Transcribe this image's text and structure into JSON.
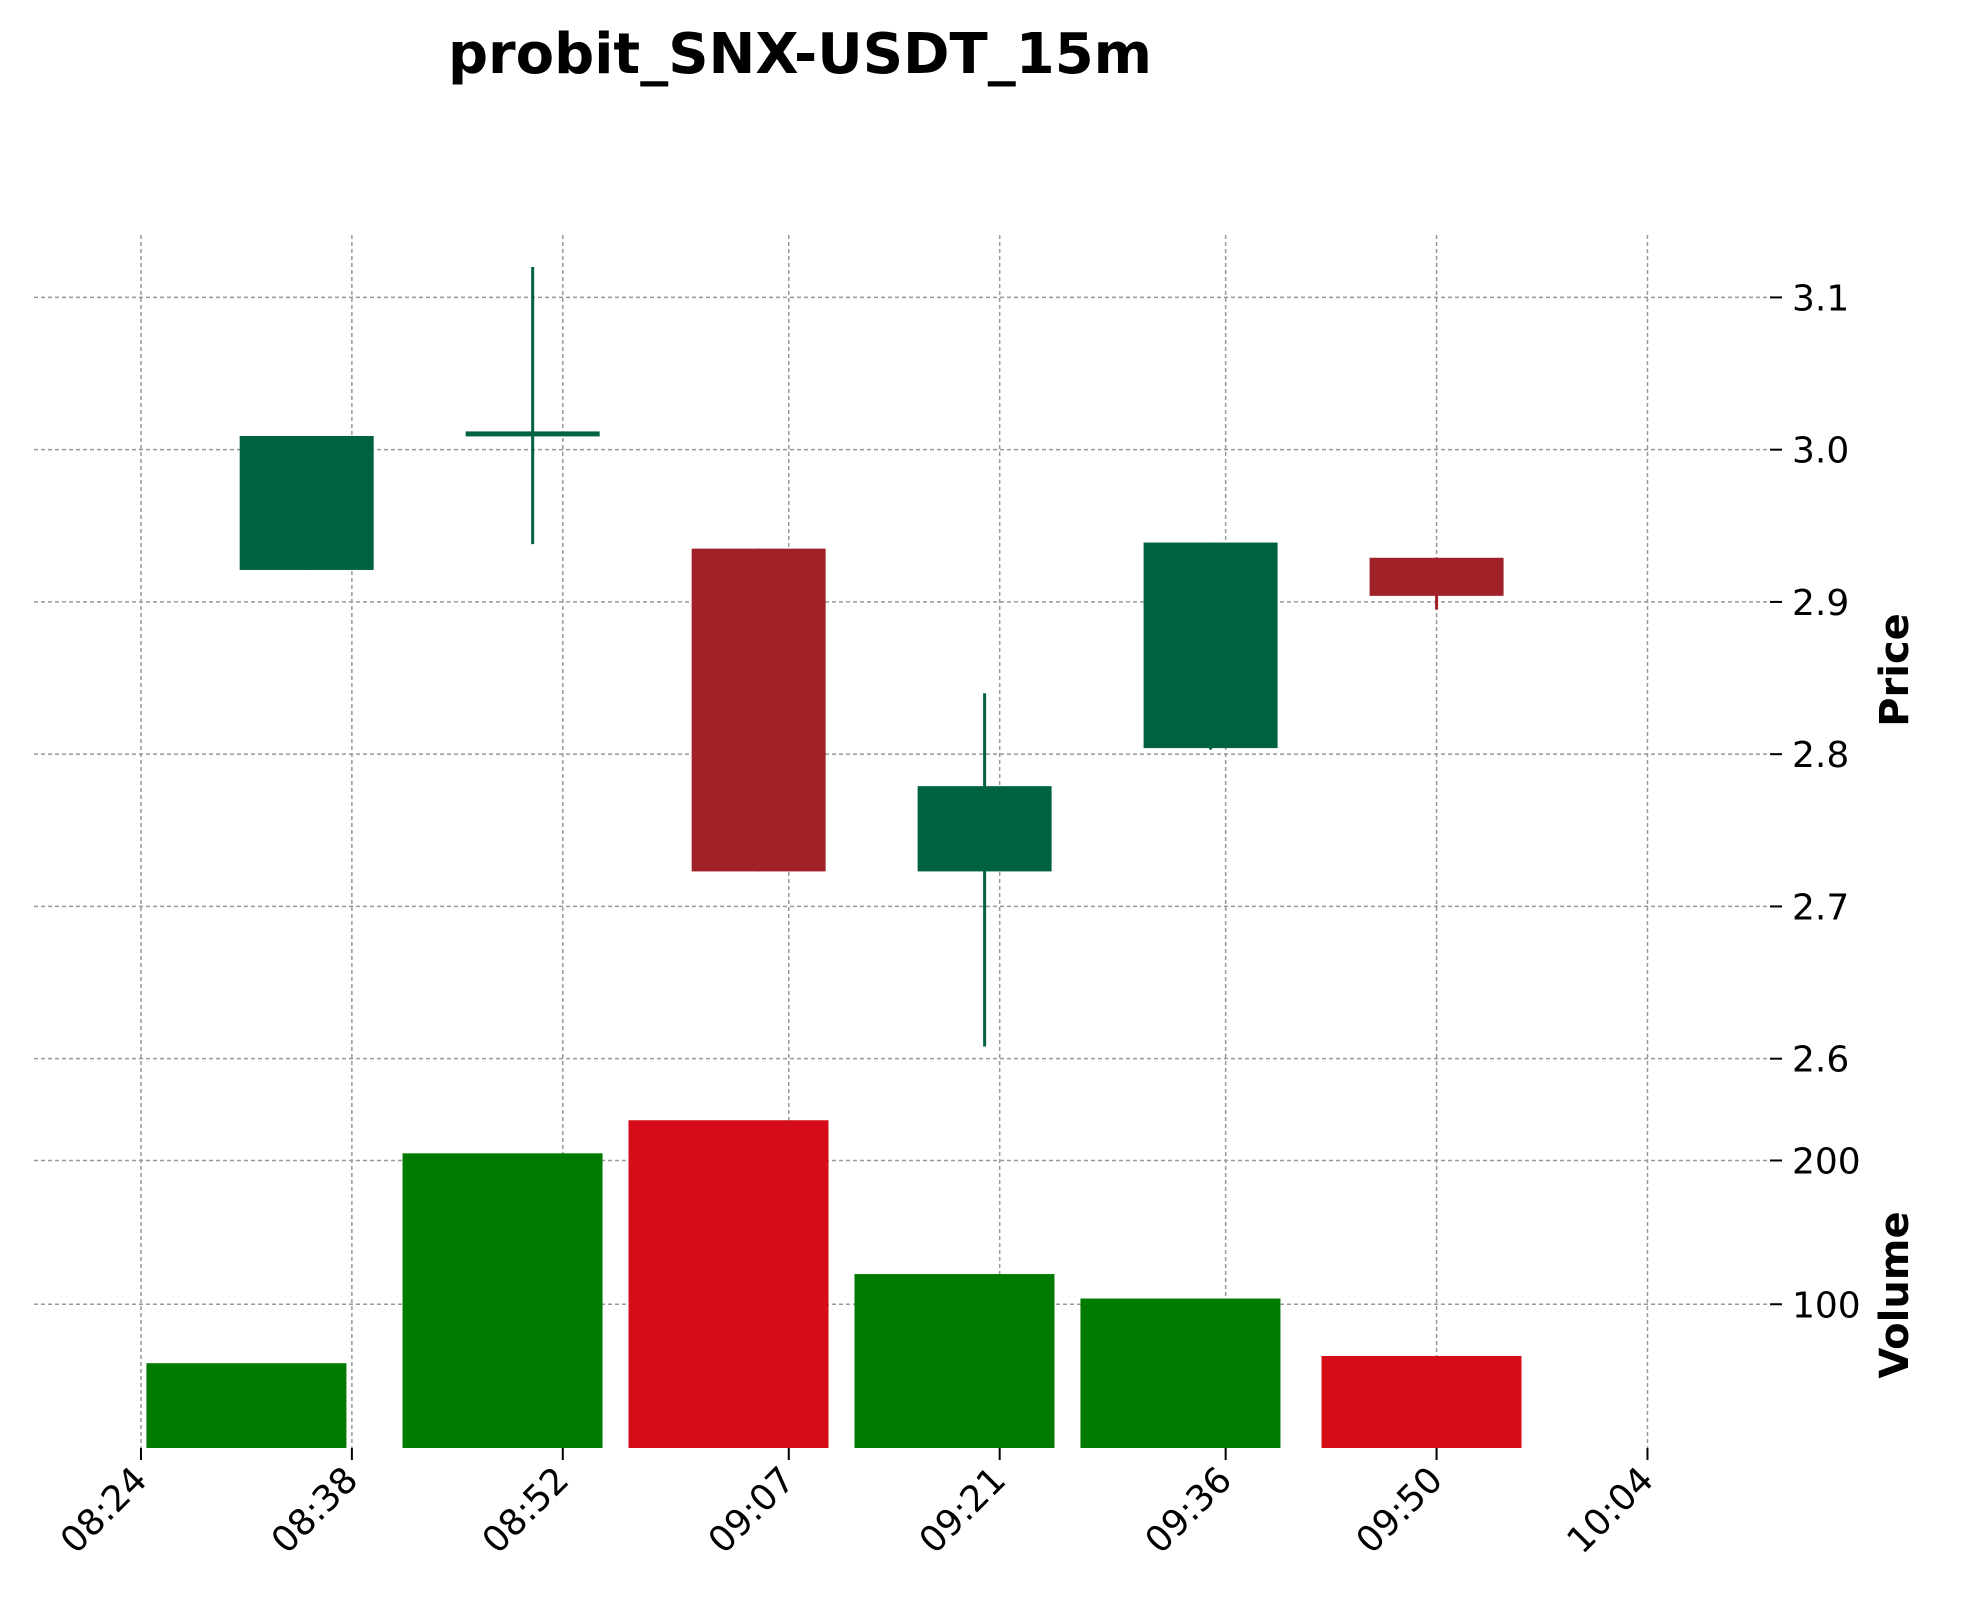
{
  "chart_data": {
    "type": "candlestick",
    "title": "probit_SNX-USDT_15m",
    "x_tick_labels": [
      "08:24",
      "08:38",
      "08:52",
      "09:07",
      "09:21",
      "09:36",
      "09:50",
      "10:04"
    ],
    "x_tick_minutes": [
      504,
      518,
      532,
      547,
      561,
      576,
      590,
      604
    ],
    "candles": [
      {
        "time_minutes": 515,
        "open": 2.921,
        "high": 3.009,
        "low": 2.921,
        "close": 3.009,
        "direction": "up"
      },
      {
        "time_minutes": 530,
        "open": 3.009,
        "high": 3.12,
        "low": 2.938,
        "close": 3.012,
        "direction": "up"
      },
      {
        "time_minutes": 545,
        "open": 2.935,
        "high": 2.935,
        "low": 2.723,
        "close": 2.723,
        "direction": "down"
      },
      {
        "time_minutes": 560,
        "open": 2.723,
        "high": 2.84,
        "low": 2.608,
        "close": 2.779,
        "direction": "up"
      },
      {
        "time_minutes": 575,
        "open": 2.804,
        "high": 2.939,
        "low": 2.803,
        "close": 2.939,
        "direction": "up"
      },
      {
        "time_minutes": 590,
        "open": 2.929,
        "high": 2.929,
        "low": 2.895,
        "close": 2.904,
        "direction": "down"
      }
    ],
    "volume": [
      {
        "time_minutes": 511,
        "value": 59,
        "direction": "up"
      },
      {
        "time_minutes": 528,
        "value": 205,
        "direction": "up"
      },
      {
        "time_minutes": 543,
        "value": 228,
        "direction": "down"
      },
      {
        "time_minutes": 558,
        "value": 121,
        "direction": "up"
      },
      {
        "time_minutes": 573,
        "value": 104,
        "direction": "up"
      },
      {
        "time_minutes": 589,
        "value": 64,
        "direction": "down"
      }
    ],
    "price_axis": {
      "label": "Price",
      "ticks": [
        "2.6",
        "2.7",
        "2.8",
        "2.9",
        "3.0",
        "3.1"
      ],
      "range": [
        2.586,
        3.141
      ]
    },
    "volume_axis": {
      "label": "Volume",
      "ticks": [
        "100",
        "200"
      ],
      "range": [
        0,
        256
      ]
    },
    "x_range": [
      496.9,
      612
    ],
    "grid": true,
    "colors": {
      "candle_up": "#006340",
      "candle_down": "#a02128",
      "volume_up": "#007a00",
      "volume_down": "#d50d18",
      "grid": "#999999",
      "text": "#000000"
    }
  }
}
